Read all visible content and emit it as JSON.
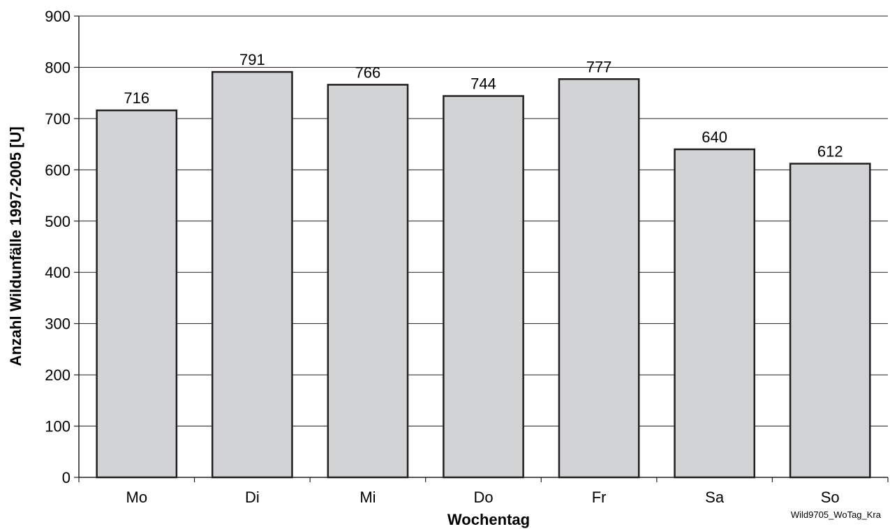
{
  "chart_data": {
    "type": "bar",
    "categories": [
      "Mo",
      "Di",
      "Mi",
      "Do",
      "Fr",
      "Sa",
      "So"
    ],
    "values": [
      716,
      791,
      766,
      744,
      777,
      640,
      612
    ],
    "xlabel": "Wochentag",
    "ylabel": "Anzahl Wildunfälle 1997-2005 [U]",
    "ylim": [
      0,
      900
    ],
    "yticks": [
      0,
      100,
      200,
      300,
      400,
      500,
      600,
      700,
      800,
      900
    ],
    "grid": true,
    "bar_color": "#d1d3d4",
    "bar_stroke": "#231f20",
    "source_note": "Wild9705_WoTag_Kra"
  }
}
